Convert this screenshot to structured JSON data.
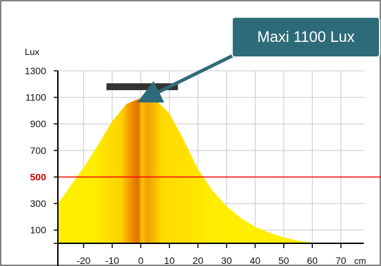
{
  "chart_data": {
    "type": "area",
    "y_unit": "Lux",
    "x_unit": "cm",
    "ylim": [
      0,
      1300
    ],
    "xlim": [
      -29,
      78
    ],
    "y_ticks": [
      {
        "value": 1300,
        "label": "1300"
      },
      {
        "value": 1100,
        "label": "1100"
      },
      {
        "value": 900,
        "label": "900"
      },
      {
        "value": 700,
        "label": "700"
      },
      {
        "value": 500,
        "label": "500"
      },
      {
        "value": 300,
        "label": "300"
      },
      {
        "value": 100,
        "label": "100"
      }
    ],
    "x_ticks": [
      {
        "value": -20,
        "label": "-20"
      },
      {
        "value": -10,
        "label": "-10"
      },
      {
        "value": 0,
        "label": "0"
      },
      {
        "value": 10,
        "label": "10"
      },
      {
        "value": 20,
        "label": "20"
      },
      {
        "value": 30,
        "label": "30"
      },
      {
        "value": 40,
        "label": "40"
      },
      {
        "value": 50,
        "label": "50"
      },
      {
        "value": 60,
        "label": "60"
      },
      {
        "value": 70,
        "label": "70"
      }
    ],
    "grid": true,
    "x": [
      -29,
      -25,
      -20,
      -15,
      -10,
      -5,
      0,
      3,
      5,
      10,
      15,
      20,
      25,
      30,
      35,
      40,
      45,
      50,
      55,
      60,
      62,
      78
    ],
    "y": [
      300,
      420,
      570,
      740,
      920,
      1050,
      1095,
      1098,
      1085,
      980,
      780,
      560,
      400,
      280,
      190,
      125,
      80,
      45,
      20,
      5,
      0,
      0
    ],
    "reference_line": {
      "value": 500,
      "label": "500",
      "color": "#ff0000"
    },
    "lamp_bar": {
      "x_start": -12,
      "x_end": 13,
      "y": 1180,
      "color": "#333333"
    },
    "annotation": {
      "text": "Maxi 1100 Lux",
      "x": 0,
      "y": 1100
    },
    "colors": {
      "fill_outer": "#ffee00",
      "fill_center": "#e07000",
      "box": "#2e6b78",
      "box_border": "#e8f0f2"
    }
  }
}
